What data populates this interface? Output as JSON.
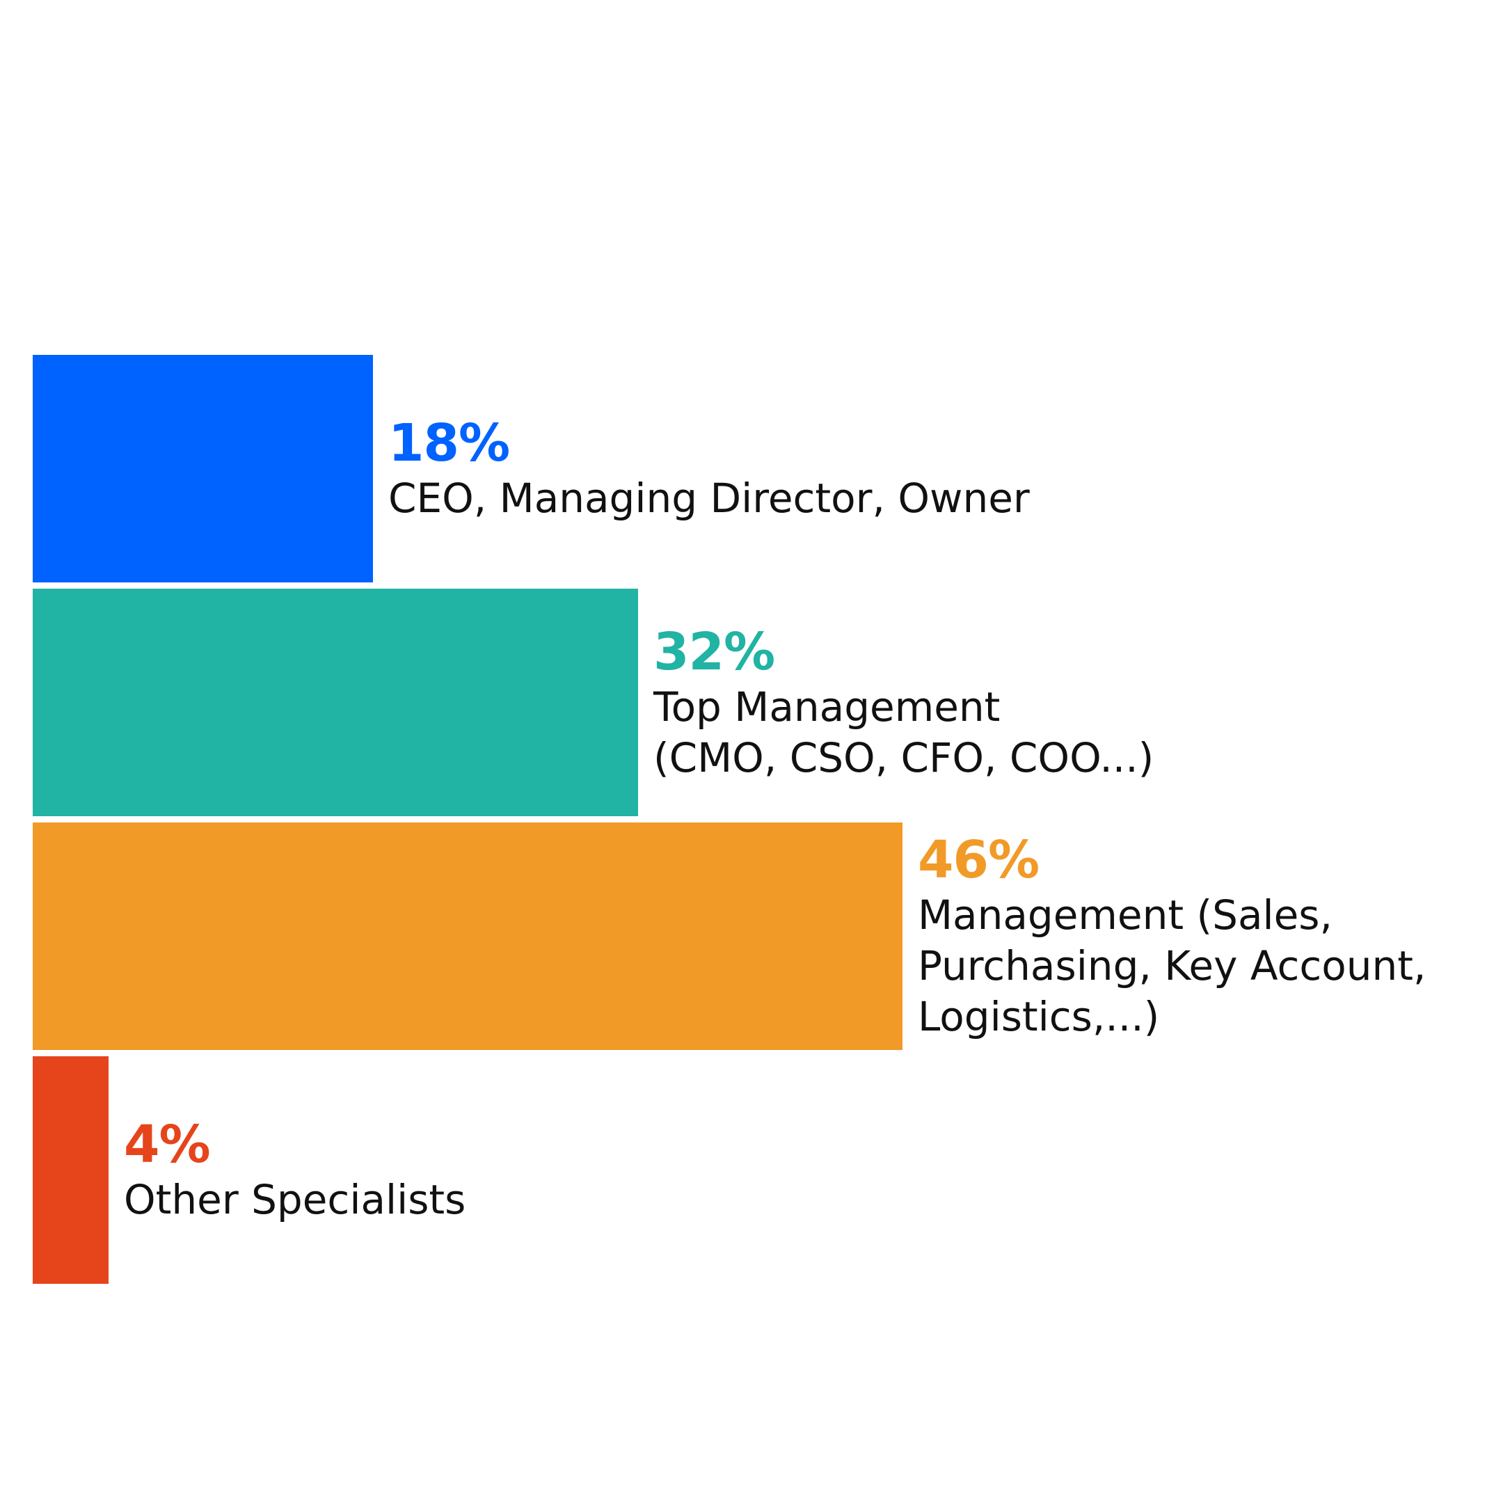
{
  "chart_data": {
    "type": "bar",
    "orientation": "horizontal",
    "categories": [
      "CEO, Managing Director, Owner",
      "Top Management\n(CMO, CSO, CFO, COO...)",
      "Management (Sales,\nPurchasing, Key Account,\nLogistics,...)",
      "Other Specialists"
    ],
    "values": [
      18,
      32,
      46,
      4
    ],
    "value_labels": [
      "18%",
      "32%",
      "46%",
      "4%"
    ],
    "colors": [
      "#0062FF",
      "#21B3A4",
      "#F19A28",
      "#E6441B"
    ],
    "title": "",
    "xlabel": "",
    "ylabel": "",
    "xlim": [
      0,
      46
    ],
    "grid": false,
    "legend": "none"
  }
}
